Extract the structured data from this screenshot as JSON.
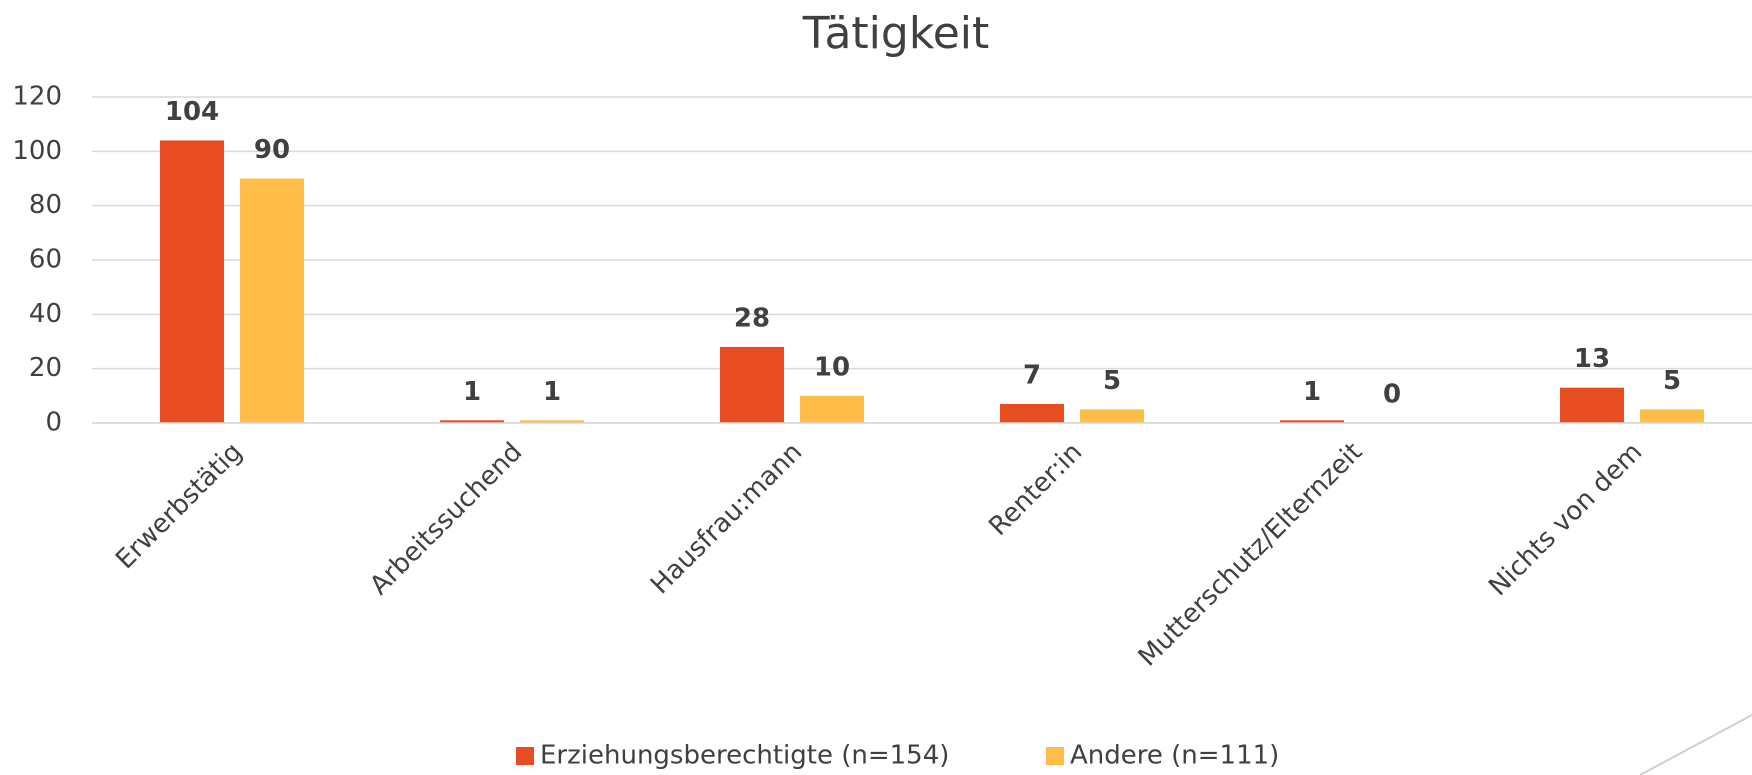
{
  "chart_data": {
    "type": "bar",
    "title": "Tätigkeit",
    "categories": [
      "Erwerbstätig",
      "Arbeitssuchend",
      "Hausfrau:mann",
      "Renter:in",
      "Mutterschutz/Elternzeit",
      "Nichts von dem"
    ],
    "series": [
      {
        "name": "Erziehungsberechtigte (n=154)",
        "color": "#e84c22",
        "values": [
          104,
          1,
          28,
          7,
          1,
          13
        ]
      },
      {
        "name": "Andere (n=111)",
        "color": "#ffbd47",
        "values": [
          90,
          1,
          10,
          5,
          0,
          5
        ]
      }
    ],
    "ylim": [
      0,
      120
    ],
    "yticks": [
      0,
      20,
      40,
      60,
      80,
      100,
      120
    ],
    "grid": true,
    "legend": "bottom"
  }
}
